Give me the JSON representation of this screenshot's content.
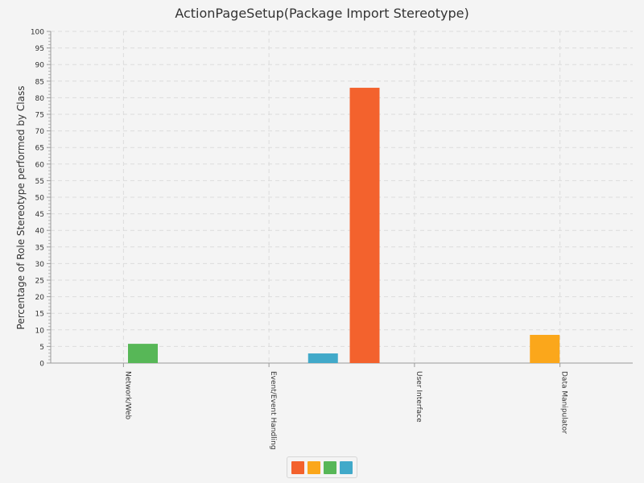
{
  "chart_data": {
    "type": "bar",
    "title": "ActionPageSetup(Package Import Stereotype)",
    "xlabel": "",
    "ylabel": "Percentage of Role Stereotype performed by Class",
    "ylim": [
      0,
      100
    ],
    "yticks": [
      "0",
      "5",
      "10",
      "15",
      "20",
      "25",
      "30",
      "35",
      "40",
      "45",
      "50",
      "55",
      "60",
      "65",
      "70",
      "75",
      "80",
      "85",
      "90",
      "95",
      "100"
    ],
    "grid": true,
    "categories": [
      "Network/Web",
      "Event/Event Handling",
      "User Interface",
      "Data Manipulator"
    ],
    "series": [
      {
        "color": "#f3622d",
        "values": [
          0,
          0,
          83,
          0
        ]
      },
      {
        "color": "#fba71b",
        "values": [
          0,
          0,
          0,
          8.5
        ]
      },
      {
        "color": "#57b757",
        "values": [
          5.8,
          0,
          0,
          0
        ]
      },
      {
        "color": "#41a9c9",
        "values": [
          0,
          2.9,
          0,
          0
        ]
      }
    ],
    "legend_position": "bottom"
  }
}
